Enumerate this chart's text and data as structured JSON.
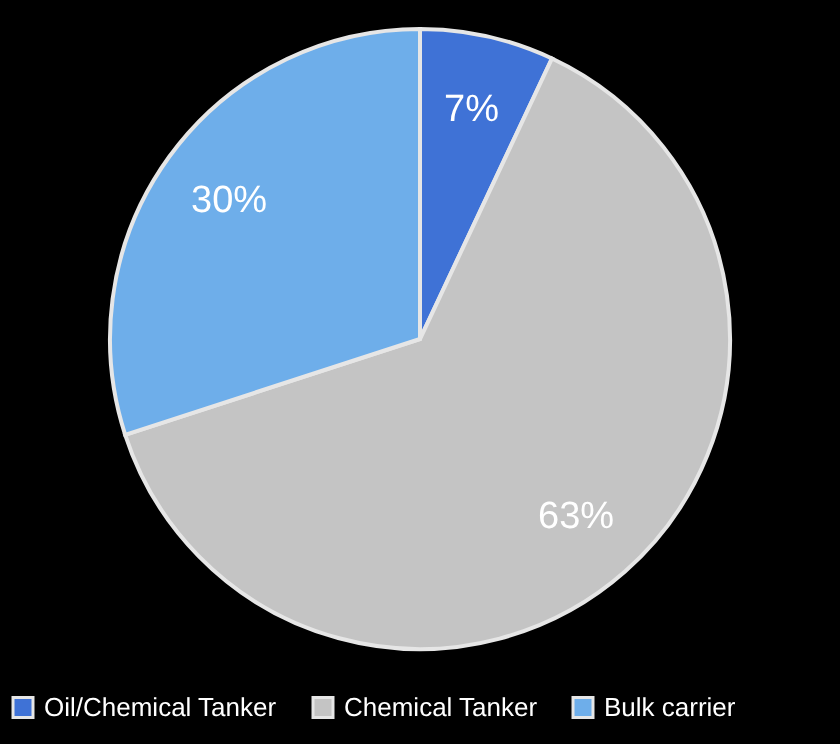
{
  "chart_data": {
    "type": "pie",
    "categories": [
      "Oil/Chemical Tanker",
      "Chemical Tanker",
      "Bulk carrier"
    ],
    "values": [
      7,
      63,
      30
    ],
    "colors": [
      "#3f72d6",
      "#c4c4c4",
      "#6eaeea"
    ],
    "value_labels": [
      "7%",
      "63%",
      "30%"
    ],
    "legend": "bottom"
  }
}
